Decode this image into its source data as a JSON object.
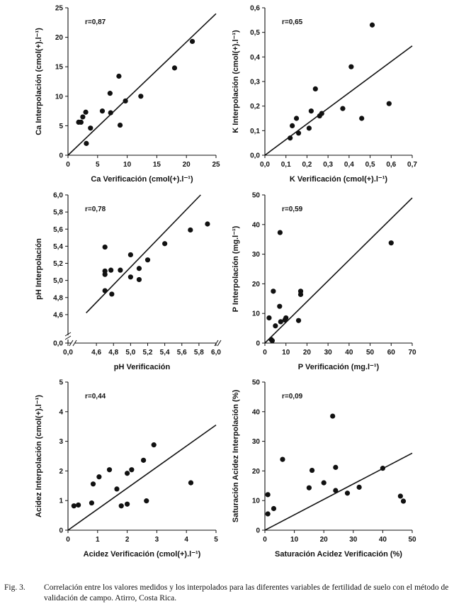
{
  "chart_data": [
    {
      "type": "scatter",
      "r_label": "r=0,87",
      "xlabel": "Ca Verificación (cmol(+).l⁻¹)",
      "ylabel": "Ca Interpolación (cmol(+).l⁻¹)",
      "xlim": [
        0,
        25
      ],
      "ylim": [
        0,
        25
      ],
      "xticks": [
        "0",
        "5",
        "10",
        "15",
        "20",
        "25"
      ],
      "yticks": [
        "0",
        "5",
        "10",
        "15",
        "20",
        "25"
      ],
      "points": [
        [
          1.8,
          5.6
        ],
        [
          2.2,
          5.6
        ],
        [
          2.5,
          6.5
        ],
        [
          3.0,
          7.3
        ],
        [
          3.1,
          2.0
        ],
        [
          3.8,
          4.6
        ],
        [
          5.8,
          7.5
        ],
        [
          7.1,
          10.5
        ],
        [
          7.2,
          7.2
        ],
        [
          8.6,
          13.4
        ],
        [
          8.8,
          5.1
        ],
        [
          9.7,
          9.2
        ],
        [
          12.3,
          10.0
        ],
        [
          18.0,
          14.8
        ],
        [
          21.0,
          19.3
        ]
      ],
      "fit_line": [
        [
          0,
          0
        ],
        [
          25,
          24
        ]
      ]
    },
    {
      "type": "scatter",
      "r_label": "r=0,65",
      "xlabel": "K Verificación (cmol(+).l⁻¹)",
      "ylabel": "K Interpolación (cmol(+).l⁻¹)",
      "xlim": [
        0,
        0.7
      ],
      "ylim": [
        0,
        0.6
      ],
      "xticks": [
        "0,0",
        "0,1",
        "0,2",
        "0,3",
        "0,4",
        "0,5",
        "0,6",
        "0,7"
      ],
      "yticks": [
        "0,0",
        "0,1",
        "0,2",
        "0,3",
        "0,4",
        "0,5",
        "0,6"
      ],
      "points": [
        [
          0.12,
          0.07
        ],
        [
          0.13,
          0.12
        ],
        [
          0.15,
          0.15
        ],
        [
          0.16,
          0.09
        ],
        [
          0.21,
          0.11
        ],
        [
          0.22,
          0.18
        ],
        [
          0.24,
          0.27
        ],
        [
          0.26,
          0.16
        ],
        [
          0.27,
          0.17
        ],
        [
          0.37,
          0.19
        ],
        [
          0.41,
          0.36
        ],
        [
          0.46,
          0.15
        ],
        [
          0.51,
          0.53
        ],
        [
          0.59,
          0.21
        ]
      ],
      "fit_line": [
        [
          0,
          0
        ],
        [
          0.7,
          0.445
        ]
      ]
    },
    {
      "type": "scatter",
      "r_label": "r=0,78",
      "xlabel": "pH Verificación",
      "ylabel": "pH Interpolación",
      "xlim": [
        4.4,
        6.0
      ],
      "ylim": [
        4.4,
        6.0
      ],
      "axis_break": true,
      "xticks": [
        "0,0",
        "4,6",
        "4,8",
        "5,0",
        "5,2",
        "5,4",
        "5,6",
        "5,8",
        "6,0"
      ],
      "yticks": [
        "0,0",
        "4,6",
        "4,8",
        "5,0",
        "5,2",
        "5,4",
        "5,6",
        "5,8",
        "6,0"
      ],
      "points": [
        [
          4.7,
          5.39
        ],
        [
          4.7,
          5.11
        ],
        [
          4.7,
          5.07
        ],
        [
          4.7,
          4.88
        ],
        [
          4.77,
          5.12
        ],
        [
          4.78,
          4.84
        ],
        [
          4.88,
          5.12
        ],
        [
          5.0,
          5.3
        ],
        [
          5.0,
          5.04
        ],
        [
          5.1,
          5.14
        ],
        [
          5.1,
          5.01
        ],
        [
          5.2,
          5.24
        ],
        [
          5.4,
          5.43
        ],
        [
          5.7,
          5.59
        ],
        [
          5.9,
          5.66
        ]
      ],
      "fit_line": [
        [
          4.48,
          4.62
        ],
        [
          5.82,
          6.0
        ]
      ]
    },
    {
      "type": "scatter",
      "r_label": "r=0,59",
      "xlabel": "P Verificación (mg.l⁻¹)",
      "ylabel": "P Interpolación (mg.l⁻¹)",
      "xlim": [
        0,
        70
      ],
      "ylim": [
        0,
        50
      ],
      "xticks": [
        "0",
        "10",
        "20",
        "30",
        "40",
        "50",
        "60",
        "70"
      ],
      "yticks": [
        "0",
        "10",
        "20",
        "30",
        "40",
        "50"
      ],
      "points": [
        [
          2,
          8.5
        ],
        [
          3,
          1.2
        ],
        [
          3.5,
          0.8
        ],
        [
          4,
          17.5
        ],
        [
          5,
          5.8
        ],
        [
          7,
          12.4
        ],
        [
          7.2,
          37.3
        ],
        [
          7.5,
          7.2
        ],
        [
          9.5,
          7.8
        ],
        [
          10,
          8.5
        ],
        [
          16,
          7.6
        ],
        [
          17,
          17.5
        ],
        [
          17,
          16.4
        ],
        [
          60,
          33.8
        ]
      ],
      "fit_line": [
        [
          0,
          0
        ],
        [
          70,
          49
        ]
      ]
    },
    {
      "type": "scatter",
      "r_label": "r=0,44",
      "xlabel": "Acidez Verificación (cmol(+).l⁻¹)",
      "ylabel": "Acidez Interpolación (cmol(+).l⁻¹)",
      "xlim": [
        0,
        5
      ],
      "ylim": [
        0,
        5
      ],
      "xticks": [
        "0",
        "1",
        "2",
        "3",
        "4",
        "5"
      ],
      "yticks": [
        "0",
        "1",
        "2",
        "3",
        "4",
        "5"
      ],
      "points": [
        [
          0.2,
          0.82
        ],
        [
          0.35,
          0.85
        ],
        [
          0.8,
          0.92
        ],
        [
          0.85,
          1.56
        ],
        [
          1.05,
          1.8
        ],
        [
          1.4,
          2.04
        ],
        [
          1.65,
          1.39
        ],
        [
          1.8,
          0.82
        ],
        [
          2.0,
          1.92
        ],
        [
          2.0,
          0.88
        ],
        [
          2.15,
          2.04
        ],
        [
          2.55,
          2.36
        ],
        [
          2.65,
          0.99
        ],
        [
          2.9,
          2.88
        ],
        [
          4.15,
          1.6
        ]
      ],
      "fit_line": [
        [
          0,
          0
        ],
        [
          5,
          3.55
        ]
      ]
    },
    {
      "type": "scatter",
      "r_label": "r=0,09",
      "xlabel": "Saturación Acidez Verificación (%)",
      "ylabel": "Saturación Acidez Interpolación (%)",
      "xlim": [
        0,
        50
      ],
      "ylim": [
        0,
        50
      ],
      "xticks": [
        "0",
        "10",
        "20",
        "30",
        "40",
        "50"
      ],
      "yticks": [
        "0",
        "10",
        "20",
        "30",
        "40",
        "50"
      ],
      "points": [
        [
          1,
          12
        ],
        [
          1,
          5.5
        ],
        [
          3,
          7.3
        ],
        [
          6,
          23.9
        ],
        [
          15,
          14.3
        ],
        [
          16,
          20.2
        ],
        [
          20,
          16
        ],
        [
          23,
          38.5
        ],
        [
          24,
          21.2
        ],
        [
          24,
          13.4
        ],
        [
          28,
          12.5
        ],
        [
          32,
          14.5
        ],
        [
          40,
          20.9
        ],
        [
          46,
          11.5
        ],
        [
          47,
          9.8
        ]
      ],
      "fit_line": [
        [
          0,
          0
        ],
        [
          50,
          26
        ]
      ]
    }
  ],
  "caption": {
    "fig_label": "Fig. 3.",
    "text": "Correlación entre los valores medidos y los interpolados para las diferentes variables de fertilidad de suelo con el método de validación de campo. Atirro, Costa Rica."
  }
}
